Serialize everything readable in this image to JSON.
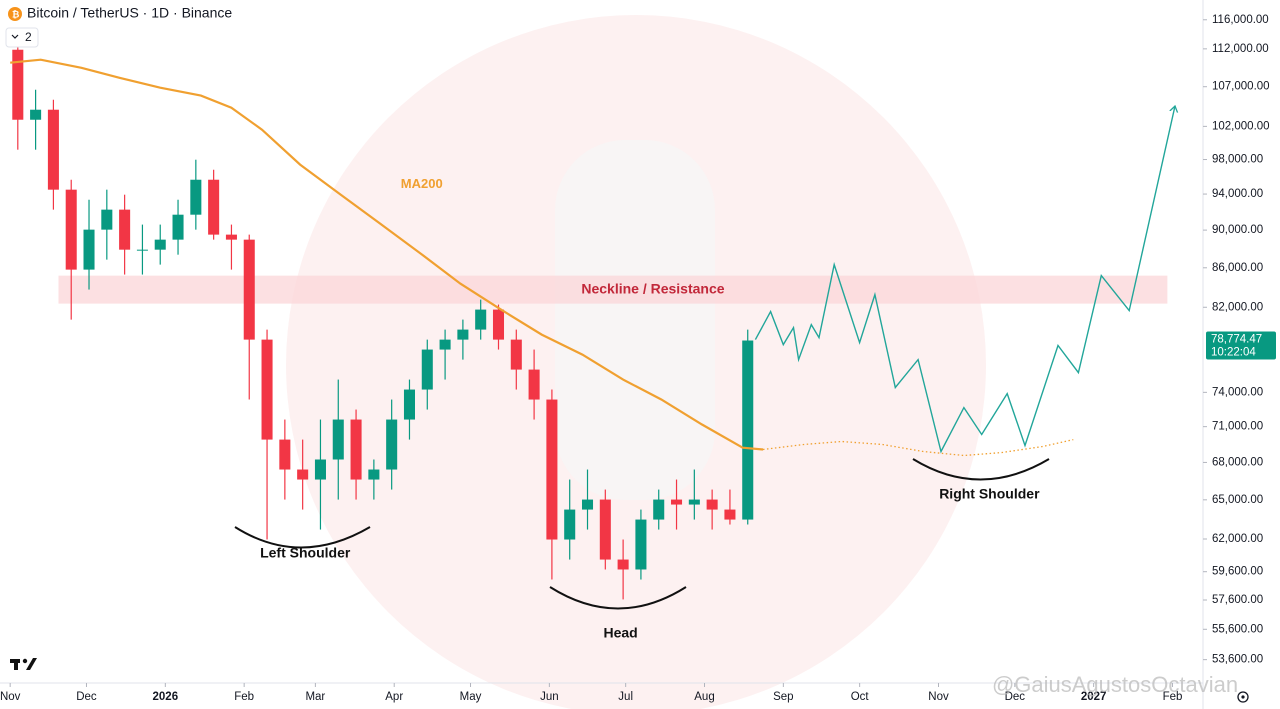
{
  "chart_data": {
    "type": "candlestick",
    "title": "Bitcoin / TetherUS · 1D · Binance",
    "indicator_count": "2",
    "log_scale": true,
    "xlim": [
      -4,
      469
    ],
    "ylim": [
      52300,
      118800
    ],
    "xticks": [
      {
        "value": 0,
        "label": "Nov"
      },
      {
        "value": 30,
        "label": "Dec"
      },
      {
        "value": 61,
        "label": "2026"
      },
      {
        "value": 92,
        "label": "Feb"
      },
      {
        "value": 120,
        "label": "Mar"
      },
      {
        "value": 151,
        "label": "Apr"
      },
      {
        "value": 181,
        "label": "May"
      },
      {
        "value": 212,
        "label": "Jun"
      },
      {
        "value": 242,
        "label": "Jul"
      },
      {
        "value": 273,
        "label": "Aug"
      },
      {
        "value": 304,
        "label": "Sep"
      },
      {
        "value": 334,
        "label": "Oct"
      },
      {
        "value": 365,
        "label": "Nov"
      },
      {
        "value": 395,
        "label": "Dec"
      },
      {
        "value": 426,
        "label": "2027"
      },
      {
        "value": 457,
        "label": "Feb"
      }
    ],
    "yticks": [
      {
        "value": 116000,
        "label": "116,000.00"
      },
      {
        "value": 112000,
        "label": "112,000.00"
      },
      {
        "value": 107000,
        "label": "107,000.00"
      },
      {
        "value": 102000,
        "label": "102,000.00"
      },
      {
        "value": 98000,
        "label": "98,000.00"
      },
      {
        "value": 94000,
        "label": "94,000.00"
      },
      {
        "value": 90000,
        "label": "90,000.00"
      },
      {
        "value": 86000,
        "label": "86,000.00"
      },
      {
        "value": 82000,
        "label": "82,000.00"
      },
      {
        "value": 74000,
        "label": "74,000.00"
      },
      {
        "value": 71000,
        "label": "71,000.00"
      },
      {
        "value": 68000,
        "label": "68,000.00"
      },
      {
        "value": 65000,
        "label": "65,000.00"
      },
      {
        "value": 62000,
        "label": "62,000.00"
      },
      {
        "value": 59600,
        "label": "59,600.00"
      },
      {
        "value": 57600,
        "label": "57,600.00"
      },
      {
        "value": 55600,
        "label": "55,600.00"
      },
      {
        "value": 53600,
        "label": "53,600.00"
      }
    ],
    "up_color": "#089981",
    "down_color": "#f23645",
    "candles": {
      "x": [
        3,
        10,
        17,
        24,
        31,
        38,
        45,
        52,
        59,
        66,
        73,
        80,
        87,
        94,
        101,
        108,
        115,
        122,
        129,
        136,
        143,
        150,
        157,
        164,
        171,
        178,
        185,
        192,
        199,
        206,
        213,
        220,
        227,
        234,
        241,
        248,
        255,
        262,
        269,
        276,
        283,
        290
      ],
      "open": [
        111880,
        102820,
        104070,
        94500,
        85810,
        90050,
        92250,
        87900,
        87900,
        88970,
        91690,
        95640,
        89510,
        88970,
        78860,
        69900,
        67420,
        66610,
        68240,
        71610,
        66610,
        67420,
        71610,
        74250,
        77920,
        78860,
        79820,
        81770,
        78860,
        76060,
        73360,
        61960,
        64240,
        65020,
        60480,
        59760,
        63470,
        65020,
        64630,
        65020,
        64240,
        63470
      ],
      "high": [
        113230,
        106610,
        105330,
        95640,
        93360,
        94500,
        93930,
        90600,
        90600,
        93360,
        97980,
        96800,
        90600,
        89510,
        79820,
        71610,
        69900,
        71610,
        75150,
        72480,
        68240,
        73360,
        75150,
        78860,
        79820,
        80790,
        82760,
        82270,
        79820,
        77920,
        74250,
        66610,
        67420,
        65810,
        61960,
        64240,
        65810,
        66610,
        67420,
        65810,
        65810,
        79820
      ],
      "low": [
        99170,
        99170,
        92250,
        80790,
        83770,
        86850,
        85300,
        85300,
        86330,
        87370,
        90050,
        88970,
        85810,
        73360,
        61960,
        65020,
        64240,
        62710,
        65020,
        65020,
        65020,
        65810,
        69900,
        72480,
        75150,
        76980,
        78860,
        77920,
        74250,
        71610,
        59040,
        60480,
        62710,
        59760,
        57640,
        59040,
        62710,
        62710,
        63470,
        62710,
        63090,
        63090
      ],
      "close": [
        102820,
        104070,
        94500,
        85810,
        90050,
        92250,
        87900,
        87900,
        88970,
        91690,
        95640,
        89510,
        88970,
        78860,
        69900,
        67420,
        66610,
        68240,
        71610,
        66610,
        67420,
        71610,
        74250,
        77920,
        78860,
        79820,
        81770,
        78860,
        76060,
        73360,
        61960,
        64240,
        65020,
        60480,
        59760,
        63470,
        65020,
        64630,
        65020,
        64240,
        63470,
        78774.47
      ]
    },
    "series": [
      {
        "name": "MA200",
        "color": "#f0a030",
        "style": "solid",
        "x": [
          0,
          12,
          28,
          43,
          59,
          75,
          87,
          99,
          114,
          130,
          146,
          162,
          177,
          193,
          209,
          225,
          241,
          256,
          272,
          288,
          296
        ],
        "values": [
          110150,
          110540,
          109470,
          108160,
          106870,
          105860,
          104320,
          101590,
          97400,
          93930,
          90600,
          87370,
          84370,
          81770,
          79340,
          77450,
          75150,
          73360,
          71180,
          69220,
          69070
        ]
      },
      {
        "color": "#f0a030",
        "style": "dotted",
        "x": [
          296,
          312,
          327,
          343,
          359,
          375,
          390,
          406,
          418
        ],
        "values": [
          69070,
          69490,
          69740,
          69490,
          68900,
          68570,
          68820,
          69320,
          69900
        ]
      },
      {
        "color": "#22a69a",
        "style": "projection",
        "x": [
          293,
          299,
          304,
          308,
          310,
          315,
          318,
          324,
          334,
          340,
          348,
          357,
          366,
          375,
          382,
          392,
          399,
          412,
          420,
          429,
          440,
          458
        ],
        "values": [
          78860,
          81570,
          78390,
          80010,
          76980,
          80300,
          79050,
          86330,
          78580,
          83260,
          74430,
          76980,
          68900,
          72650,
          70330,
          73890,
          69400,
          78300,
          75780,
          85190,
          81670,
          104540
        ]
      }
    ],
    "neckline": {
      "label": "Neckline / Resistance",
      "x": [
        19,
        455
      ],
      "range": [
        82360,
        85190
      ],
      "color": "#fbd5d8"
    },
    "annotations": [
      {
        "text": "Left Shoulder",
        "x": 116,
        "y": 60900
      },
      {
        "text": "Head",
        "x": 240,
        "y": 55300
      },
      {
        "text": "Right Shoulder",
        "x": 385,
        "y": 65400
      }
    ],
    "last_price": {
      "value": 78774.47,
      "label": "78,774.47"
    },
    "countdown": "10:22:04",
    "watermark": "@GaiusAgustosOctavian"
  }
}
